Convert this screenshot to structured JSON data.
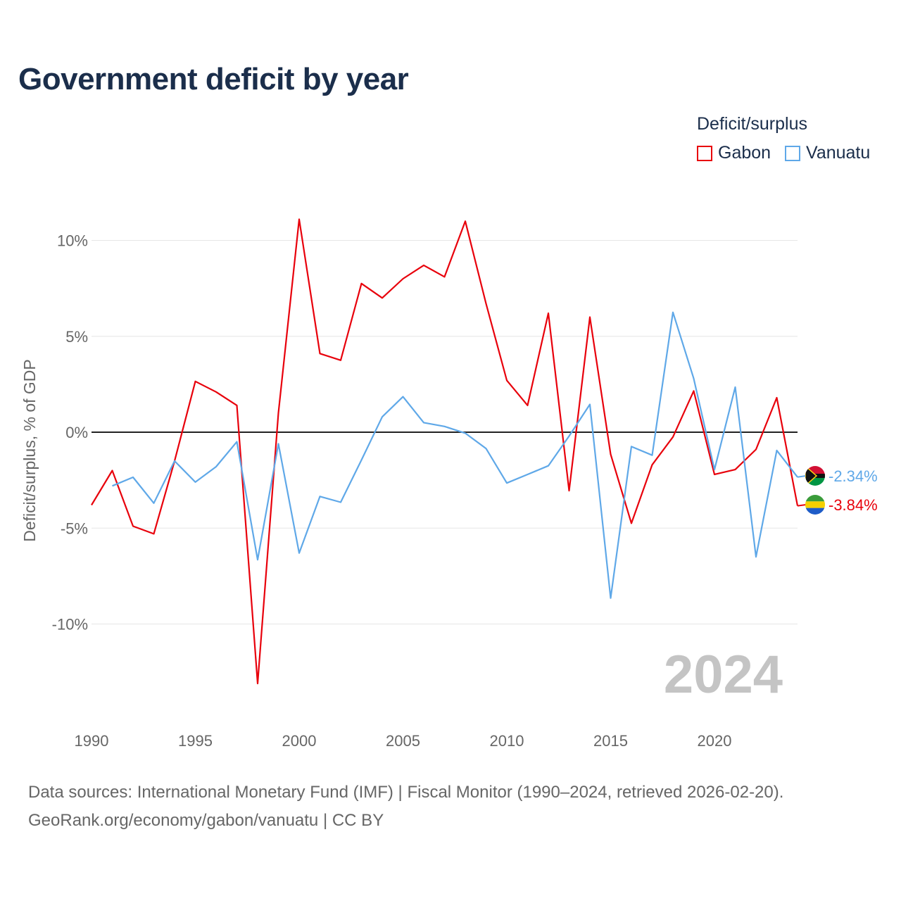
{
  "title": "Government deficit by year",
  "legend": {
    "title": "Deficit/surplus",
    "items": [
      {
        "name": "Gabon",
        "color": "#e8000b"
      },
      {
        "name": "Vanuatu",
        "color": "#5fa8e8"
      }
    ]
  },
  "year_watermark": "2024",
  "source_lines": [
    "Data sources: International Monetary Fund (IMF) | Fiscal Monitor (1990–2024, retrieved 2026-02-20).",
    "GeoRank.org/economy/gabon/vanuatu | CC BY"
  ],
  "colors": {
    "gabon": "#e8000b",
    "vanuatu": "#5fa8e8",
    "axis_text": "#666666",
    "grid": "#e6e6e6",
    "zero_line": "#222222",
    "title": "#1b2e4b",
    "watermark": "#c4c4c4"
  },
  "chart_data": {
    "type": "line",
    "title": "Government deficit by year",
    "xlabel": "",
    "ylabel": "Deficit/surplus, % of GDP",
    "xlim": [
      1990,
      2024
    ],
    "ylim": [
      -15,
      12
    ],
    "x_ticks": [
      1990,
      1995,
      2000,
      2005,
      2010,
      2015,
      2020
    ],
    "y_ticks": [
      10,
      5,
      0,
      -5,
      -10
    ],
    "y_tick_labels": [
      "10%",
      "5%",
      "0%",
      "-5%",
      "-10%"
    ],
    "grid": true,
    "legend_position": "top-right",
    "series": [
      {
        "name": "Gabon",
        "color": "#e8000b",
        "end_label": "-3.84%",
        "x": [
          1990,
          1991,
          1992,
          1993,
          1994,
          1995,
          1996,
          1997,
          1998,
          1999,
          2000,
          2001,
          2002,
          2003,
          2004,
          2005,
          2006,
          2007,
          2008,
          2009,
          2010,
          2011,
          2012,
          2013,
          2014,
          2015,
          2016,
          2017,
          2018,
          2019,
          2020,
          2021,
          2022,
          2023,
          2024
        ],
        "values": [
          -3.8,
          -2.0,
          -4.9,
          -5.3,
          -1.5,
          2.65,
          2.1,
          1.4,
          -13.1,
          1.0,
          11.1,
          4.1,
          3.75,
          7.75,
          7.0,
          8.0,
          8.7,
          8.1,
          11.0,
          6.7,
          2.7,
          1.4,
          6.2,
          -3.05,
          6.0,
          -1.15,
          -4.75,
          -1.7,
          -0.25,
          2.15,
          -2.2,
          -1.95,
          -0.9,
          1.8,
          -3.84
        ]
      },
      {
        "name": "Vanuatu",
        "color": "#5fa8e8",
        "end_label": "-2.34%",
        "x": [
          1991,
          1992,
          1993,
          1994,
          1995,
          1996,
          1997,
          1998,
          1999,
          2000,
          2001,
          2002,
          2003,
          2004,
          2005,
          2006,
          2007,
          2008,
          2009,
          2010,
          2011,
          2012,
          2013,
          2014,
          2015,
          2016,
          2017,
          2018,
          2019,
          2020,
          2021,
          2022,
          2023,
          2024
        ],
        "values": [
          -2.8,
          -2.35,
          -3.7,
          -1.5,
          -2.6,
          -1.8,
          -0.5,
          -6.65,
          -0.6,
          -6.3,
          -3.35,
          -3.65,
          -1.45,
          0.8,
          1.85,
          0.5,
          0.3,
          -0.05,
          -0.85,
          -2.65,
          -2.2,
          -1.75,
          -0.2,
          1.45,
          -8.65,
          -0.75,
          -1.2,
          6.25,
          2.8,
          -1.95,
          2.35,
          -6.5,
          -0.95,
          -2.34
        ]
      }
    ]
  }
}
